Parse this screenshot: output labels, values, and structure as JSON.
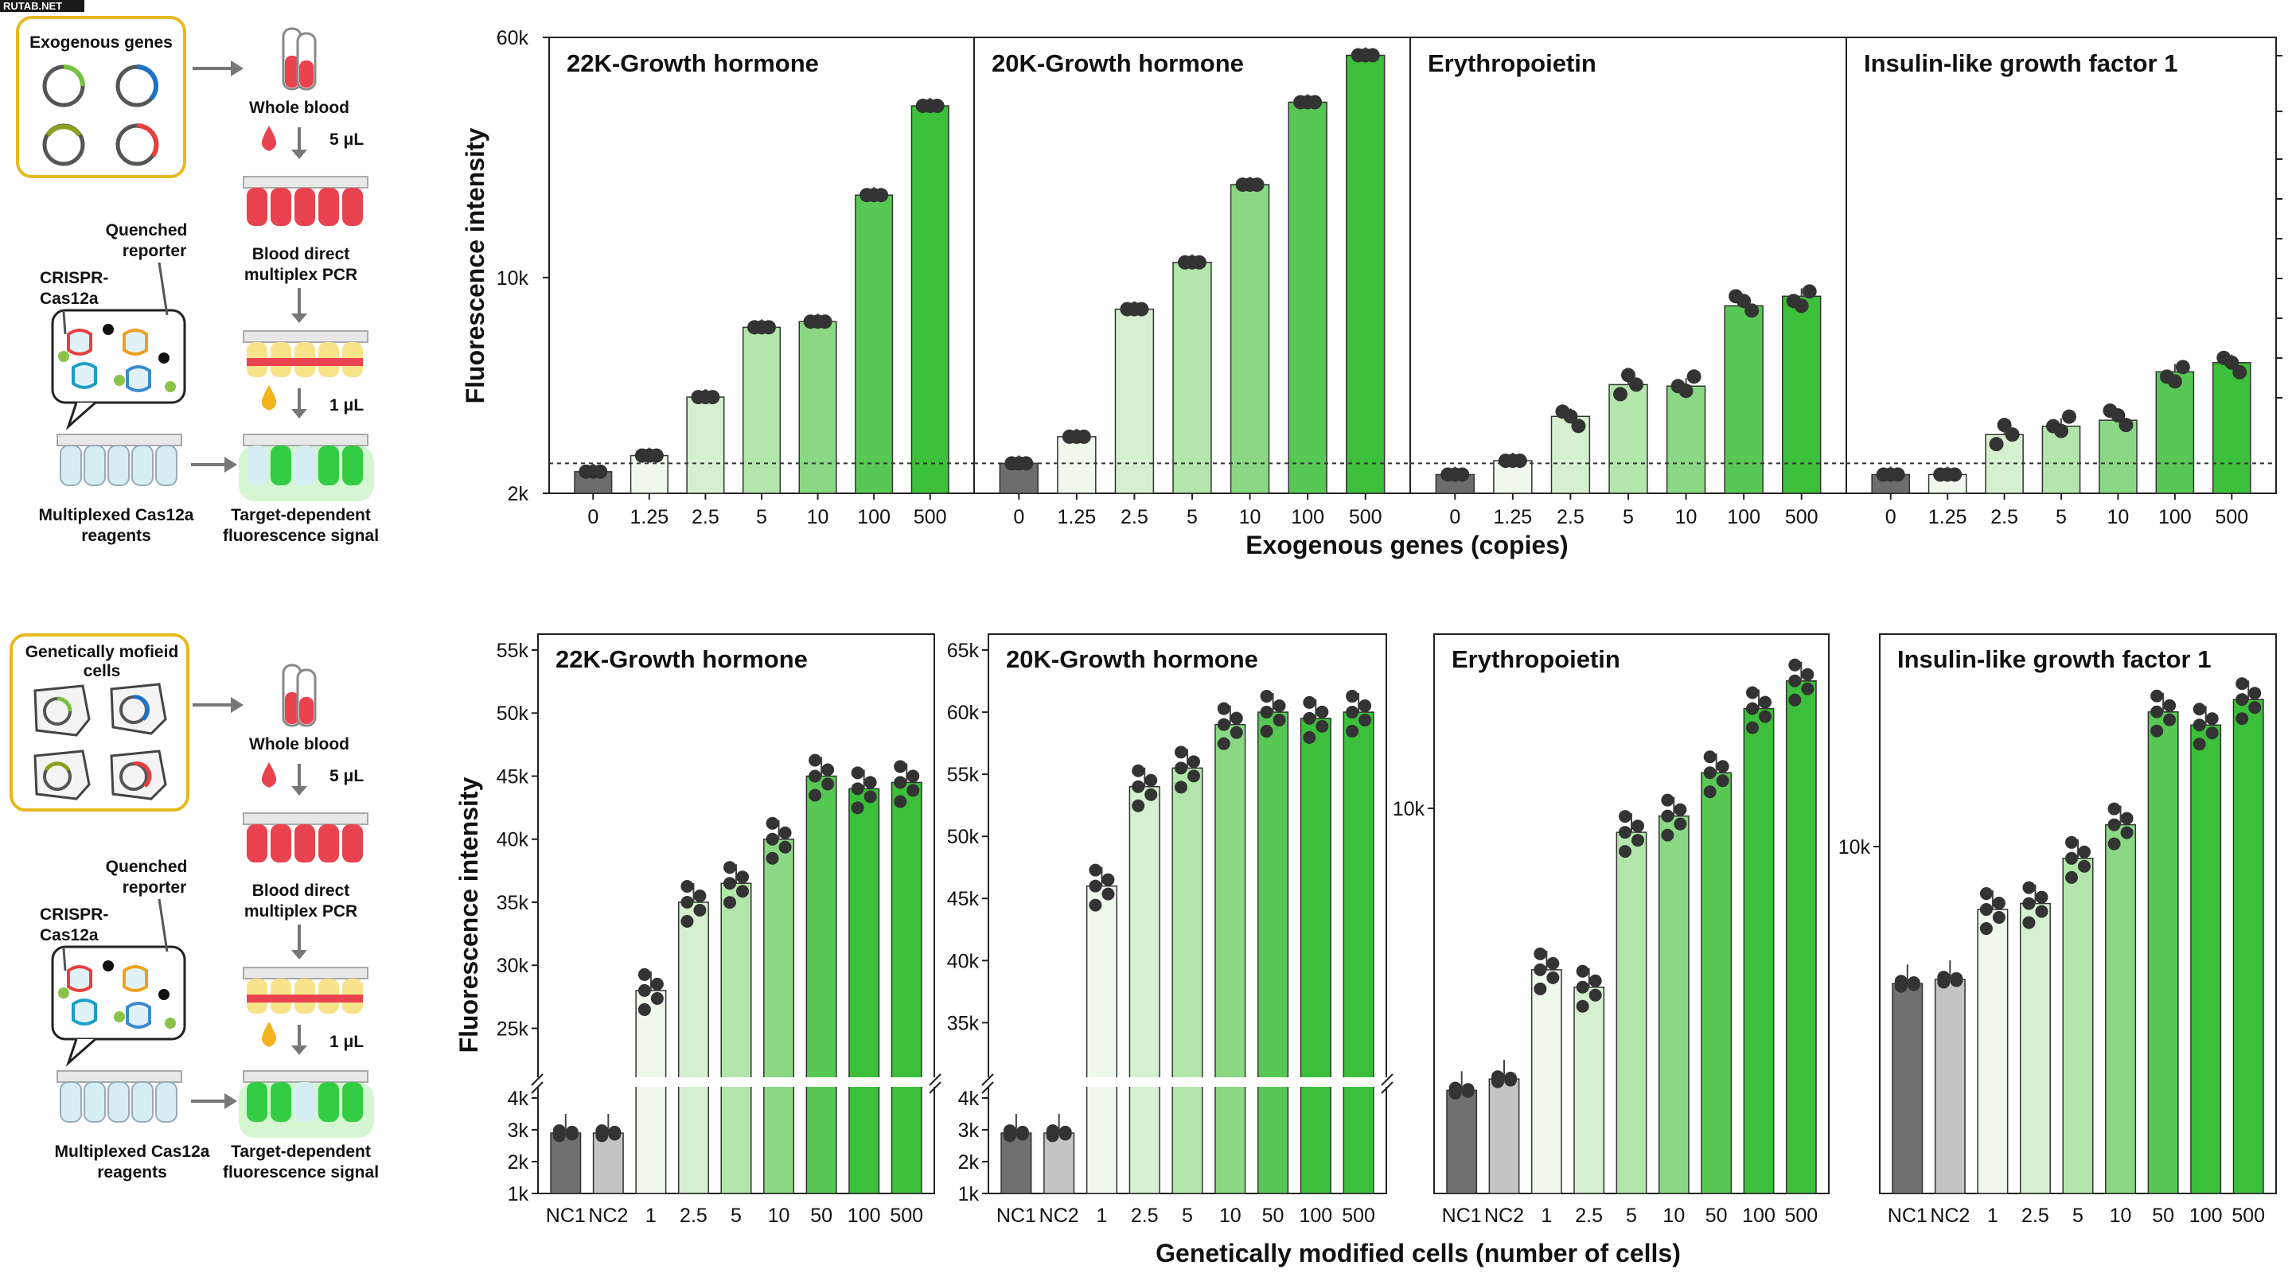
{
  "watermark": "RUTAB.NET",
  "schematic_top": {
    "box_title": "Exogenous genes",
    "whole_blood": "Whole blood",
    "vol1": "5 μL",
    "pcr": [
      "Blood direct",
      "multiplex PCR"
    ],
    "vol2": "1 μL",
    "quenched": [
      "Quenched",
      "reporter"
    ],
    "crispr": [
      "CRISPR-",
      "Cas12a"
    ],
    "reagents": [
      "Multiplexed Cas12a",
      "reagents"
    ],
    "signal": [
      "Target-dependent",
      "fluorescence signal"
    ]
  },
  "schematic_bottom": {
    "box_title": [
      "Genetically mofieid",
      "cells"
    ],
    "whole_blood": "Whole blood",
    "vol1": "5 μL",
    "pcr": [
      "Blood direct",
      "multiplex PCR"
    ],
    "vol2": "1 μL",
    "quenched": [
      "Quenched",
      "reporter"
    ],
    "crispr": [
      "CRISPR-",
      "Cas12a"
    ],
    "reagents": [
      "Multiplexed Cas12a",
      "reagents"
    ],
    "signal": [
      "Target-dependent",
      "fluorescence signal"
    ]
  },
  "colors": [
    "#6d6d6d",
    "#eef9ec",
    "#d4f0cf",
    "#b3e6ab",
    "#8ad884",
    "#58c855",
    "#3cbf3a"
  ],
  "chart_data": [
    {
      "type": "bar",
      "scale": "log",
      "ylabel": "Fluorescence intensity",
      "xlabel": "Exogenous genes (copies)",
      "ylim": [
        2000,
        60000
      ],
      "yticks": [
        {
          "v": 2000,
          "l": "2k"
        },
        {
          "v": 10000,
          "l": "10k"
        },
        {
          "v": 60000,
          "l": "60k"
        }
      ],
      "categories": [
        "0",
        "1.25",
        "2.5",
        "5",
        "10",
        "100",
        "500"
      ],
      "threshold": 2500,
      "panels": [
        {
          "title": "22K-Growth hormone",
          "values": [
            2350,
            2650,
            4100,
            6900,
            7200,
            18500,
            36000
          ]
        },
        {
          "title": "20K-Growth hormone",
          "values": [
            2500,
            3050,
            7900,
            11200,
            20000,
            37000,
            52500
          ]
        },
        {
          "title": "Erythropoietin",
          "values": [
            2300,
            2550,
            3550,
            4500,
            4450,
            8100,
            8700
          ]
        },
        {
          "title": "Insulin-like growth factor 1",
          "values": [
            2300,
            2300,
            3100,
            3300,
            3450,
            4950,
            5300
          ]
        }
      ]
    },
    {
      "type": "bar",
      "scale": "broken-linear",
      "ylabel": "Fluorescence intensity",
      "xlabel": "Genetically modified cells (number of cells)",
      "ylim": [
        1000,
        55000
      ],
      "yticks": [
        {
          "v": 1000,
          "l": "1k"
        },
        {
          "v": 2000,
          "l": "2k"
        },
        {
          "v": 3000,
          "l": "3k"
        },
        {
          "v": 4000,
          "l": "4k"
        },
        {
          "v": 25000,
          "l": "25k"
        },
        {
          "v": 30000,
          "l": "30k"
        },
        {
          "v": 35000,
          "l": "35k"
        },
        {
          "v": 40000,
          "l": "40k"
        },
        {
          "v": 45000,
          "l": "45k"
        },
        {
          "v": 50000,
          "l": "50k"
        },
        {
          "v": 55000,
          "l": "55k"
        }
      ],
      "categories": [
        "NC1",
        "NC2",
        "1",
        "2.5",
        "5",
        "10",
        "50",
        "100",
        "500"
      ],
      "title": "22K-Growth hormone",
      "values": [
        2900,
        2900,
        28000,
        35000,
        36500,
        40000,
        45000,
        44000,
        44500
      ]
    },
    {
      "type": "bar",
      "scale": "broken-linear",
      "categories": [
        "NC1",
        "NC2",
        "1",
        "2.5",
        "5",
        "10",
        "50",
        "100",
        "500"
      ],
      "ylim": [
        1000,
        65000
      ],
      "yticks": [
        {
          "v": 1000,
          "l": "1k"
        },
        {
          "v": 2000,
          "l": "2k"
        },
        {
          "v": 3000,
          "l": "3k"
        },
        {
          "v": 4000,
          "l": "4k"
        },
        {
          "v": 35000,
          "l": "35k"
        },
        {
          "v": 40000,
          "l": "40k"
        },
        {
          "v": 45000,
          "l": "45k"
        },
        {
          "v": 50000,
          "l": "50k"
        },
        {
          "v": 55000,
          "l": "55k"
        },
        {
          "v": 60000,
          "l": "60k"
        },
        {
          "v": 65000,
          "l": "65k"
        }
      ],
      "title": "20K-Growth hormone",
      "values": [
        2900,
        2900,
        46000,
        54000,
        55500,
        59000,
        60000,
        59500,
        60000
      ]
    },
    {
      "type": "bar",
      "scale": "log",
      "categories": [
        "NC1",
        "NC2",
        "1",
        "2.5",
        "5",
        "10",
        "50",
        "100",
        "500"
      ],
      "yticks": [
        {
          "v": 10000,
          "l": "10k"
        }
      ],
      "title": "Erythropoietin",
      "values": [
        3300,
        3450,
        5300,
        4950,
        9100,
        9700,
        11500,
        14800,
        16500
      ]
    },
    {
      "type": "bar",
      "scale": "log",
      "categories": [
        "NC1",
        "NC2",
        "1",
        "2.5",
        "5",
        "10",
        "50",
        "100",
        "500"
      ],
      "yticks": [
        {
          "v": 10000,
          "l": "10k"
        }
      ],
      "title": "Insulin-like growth factor 1",
      "values": [
        5500,
        5600,
        7600,
        7800,
        9500,
        11000,
        18000,
        17000,
        19000
      ]
    }
  ]
}
